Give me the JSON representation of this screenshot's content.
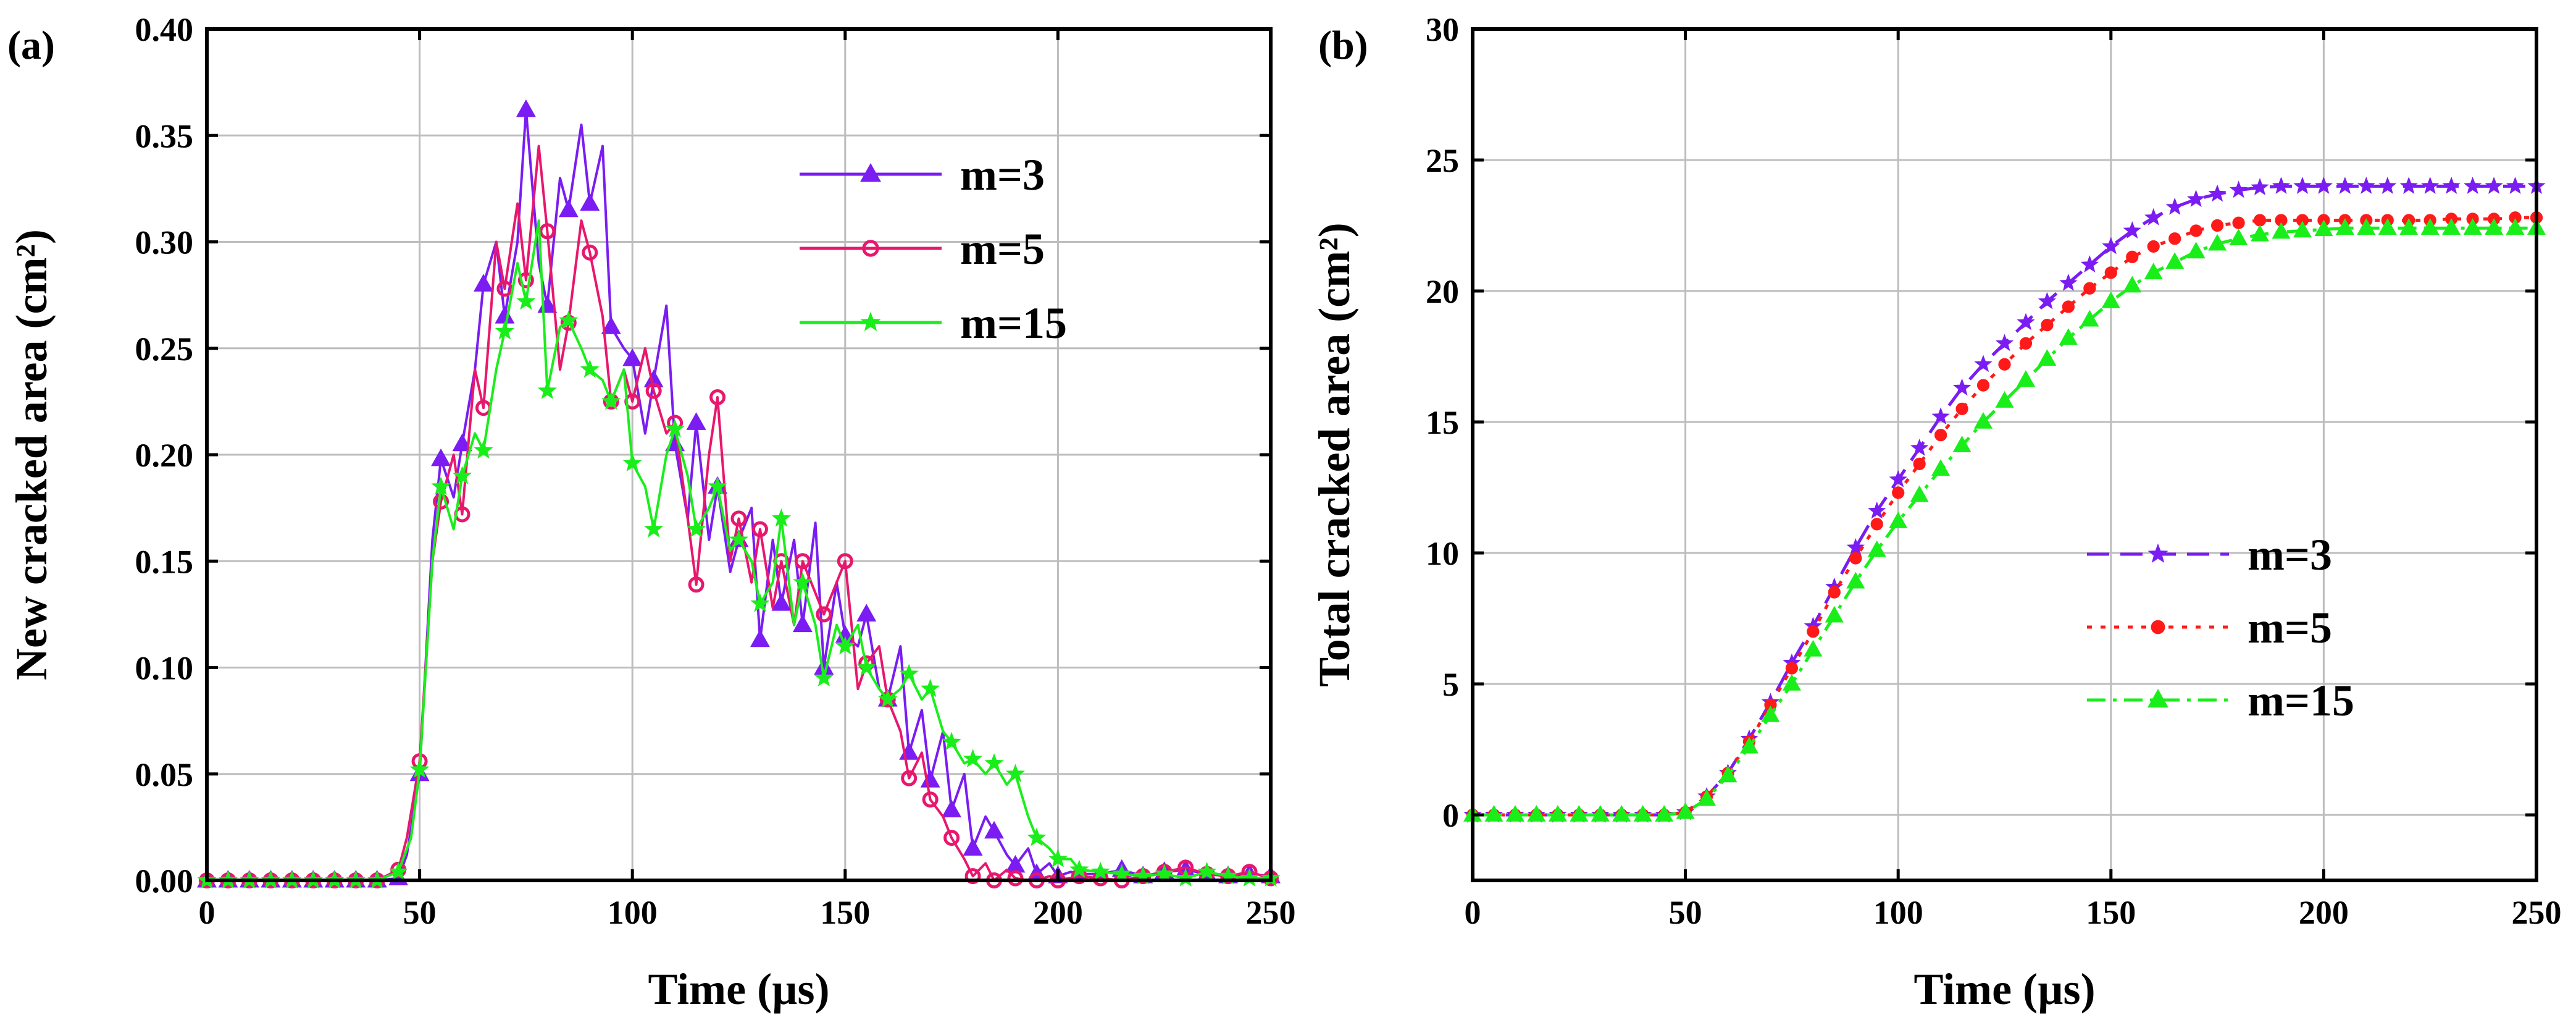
{
  "chart_data": [
    {
      "id": "a",
      "type": "line",
      "panel_label": "(a)",
      "xlabel": "Time (µs)",
      "ylabel": "New cracked area (cm²)",
      "xlim": [
        0,
        250
      ],
      "ylim": [
        0,
        0.4
      ],
      "xticks": [
        "0",
        "50",
        "100",
        "150",
        "200",
        "250"
      ],
      "yticks": [
        "0.00",
        "0.05",
        "0.10",
        "0.15",
        "0.20",
        "0.25",
        "0.30",
        "0.35",
        "0.40"
      ],
      "grid": true,
      "legend_position": "top-right",
      "series": [
        {
          "name": "m=3",
          "color": "#7a1cf2",
          "marker": "triangle",
          "dash": "solid",
          "x": [
            0,
            5,
            10,
            15,
            20,
            25,
            30,
            35,
            40,
            45,
            47,
            50,
            53,
            55,
            58,
            60,
            63,
            65,
            68,
            70,
            73,
            75,
            78,
            80,
            83,
            85,
            88,
            90,
            93,
            95,
            98,
            100,
            103,
            105,
            108,
            110,
            113,
            115,
            118,
            120,
            123,
            125,
            128,
            130,
            133,
            135,
            138,
            140,
            143,
            145,
            148,
            150,
            153,
            155,
            158,
            160,
            163,
            165,
            168,
            170,
            173,
            175,
            178,
            180,
            183,
            185,
            188,
            190,
            193,
            195,
            198,
            200,
            203,
            205,
            210,
            215,
            220,
            225,
            230,
            235,
            240,
            245,
            250
          ],
          "y": [
            0,
            0,
            0,
            0,
            0,
            0,
            0,
            0,
            0,
            0.001,
            0.012,
            0.05,
            0.16,
            0.198,
            0.18,
            0.205,
            0.24,
            0.28,
            0.3,
            0.265,
            0.3,
            0.362,
            0.29,
            0.27,
            0.33,
            0.315,
            0.355,
            0.318,
            0.345,
            0.26,
            0.25,
            0.245,
            0.21,
            0.235,
            0.27,
            0.205,
            0.17,
            0.215,
            0.16,
            0.185,
            0.145,
            0.16,
            0.175,
            0.113,
            0.16,
            0.13,
            0.16,
            0.12,
            0.168,
            0.1,
            0.14,
            0.115,
            0.11,
            0.125,
            0.09,
            0.085,
            0.11,
            0.06,
            0.08,
            0.047,
            0.07,
            0.033,
            0.05,
            0.015,
            0.03,
            0.023,
            0.012,
            0.007,
            0.015,
            0.003,
            0.008,
            0.002,
            0.004,
            0.003,
            0.003,
            0.005,
            0.002,
            0.004,
            0.005,
            0.003,
            0.002,
            0.003,
            0.002
          ]
        },
        {
          "name": "m=5",
          "color": "#e8176d",
          "marker": "circle",
          "dash": "solid",
          "x": [
            0,
            5,
            10,
            15,
            20,
            25,
            30,
            35,
            40,
            45,
            47,
            50,
            53,
            55,
            58,
            60,
            63,
            65,
            68,
            70,
            73,
            75,
            78,
            80,
            83,
            85,
            88,
            90,
            93,
            95,
            98,
            100,
            103,
            105,
            108,
            110,
            113,
            115,
            118,
            120,
            123,
            125,
            128,
            130,
            133,
            135,
            138,
            140,
            143,
            145,
            148,
            150,
            153,
            155,
            158,
            160,
            163,
            165,
            168,
            170,
            173,
            175,
            178,
            180,
            183,
            185,
            188,
            190,
            193,
            195,
            198,
            200,
            205,
            210,
            215,
            220,
            225,
            230,
            235,
            240,
            245,
            250
          ],
          "y": [
            0,
            0,
            0,
            0,
            0,
            0,
            0,
            0,
            0,
            0.005,
            0.02,
            0.056,
            0.15,
            0.178,
            0.2,
            0.172,
            0.24,
            0.222,
            0.3,
            0.278,
            0.318,
            0.282,
            0.345,
            0.305,
            0.24,
            0.262,
            0.31,
            0.295,
            0.265,
            0.225,
            0.24,
            0.225,
            0.25,
            0.23,
            0.21,
            0.215,
            0.17,
            0.139,
            0.2,
            0.227,
            0.15,
            0.17,
            0.14,
            0.165,
            0.128,
            0.15,
            0.12,
            0.15,
            0.135,
            0.125,
            0.14,
            0.15,
            0.09,
            0.102,
            0.11,
            0.085,
            0.07,
            0.048,
            0.06,
            0.038,
            0.03,
            0.02,
            0.01,
            0.002,
            0.008,
            0,
            0.005,
            0.001,
            0,
            0,
            0.002,
            0,
            0.002,
            0.001,
            0,
            0.002,
            0.004,
            0.006,
            0.003,
            0.002,
            0.004,
            0.001
          ]
        },
        {
          "name": "m=15",
          "color": "#1aee1a",
          "marker": "star",
          "dash": "solid",
          "x": [
            0,
            5,
            10,
            15,
            20,
            25,
            30,
            35,
            40,
            45,
            48,
            50,
            53,
            55,
            58,
            60,
            63,
            65,
            68,
            70,
            73,
            75,
            78,
            80,
            83,
            85,
            88,
            90,
            93,
            95,
            98,
            100,
            103,
            105,
            108,
            110,
            113,
            115,
            118,
            120,
            123,
            125,
            128,
            130,
            133,
            135,
            138,
            140,
            143,
            145,
            148,
            150,
            153,
            155,
            158,
            160,
            163,
            165,
            168,
            170,
            173,
            175,
            178,
            180,
            183,
            185,
            188,
            190,
            193,
            195,
            198,
            200,
            203,
            205,
            210,
            215,
            220,
            225,
            230,
            235,
            240,
            245,
            250
          ],
          "y": [
            0,
            0,
            0,
            0,
            0,
            0,
            0,
            0,
            0,
            0.004,
            0.02,
            0.052,
            0.15,
            0.185,
            0.165,
            0.19,
            0.21,
            0.202,
            0.24,
            0.258,
            0.29,
            0.272,
            0.31,
            0.23,
            0.26,
            0.263,
            0.25,
            0.24,
            0.235,
            0.225,
            0.24,
            0.196,
            0.185,
            0.165,
            0.2,
            0.212,
            0.19,
            0.165,
            0.175,
            0.185,
            0.155,
            0.16,
            0.15,
            0.13,
            0.14,
            0.17,
            0.12,
            0.14,
            0.12,
            0.095,
            0.12,
            0.11,
            0.12,
            0.1,
            0.09,
            0.085,
            0.09,
            0.097,
            0.085,
            0.09,
            0.07,
            0.065,
            0.055,
            0.057,
            0.05,
            0.055,
            0.045,
            0.05,
            0.03,
            0.02,
            0.015,
            0.01,
            0.01,
            0.005,
            0.004,
            0.003,
            0.002,
            0.003,
            0.001,
            0.004,
            0.002,
            0.001,
            0.001
          ]
        }
      ]
    },
    {
      "id": "b",
      "type": "line",
      "panel_label": "(b)",
      "xlabel": "Time (µs)",
      "ylabel": "Total cracked area (cm²)",
      "xlim": [
        0,
        250
      ],
      "ylim": [
        -2.5,
        30
      ],
      "xticks": [
        "0",
        "50",
        "100",
        "150",
        "200",
        "250"
      ],
      "yticks": [
        "0",
        "5",
        "10",
        "15",
        "20",
        "25",
        "30"
      ],
      "grid": true,
      "legend_position": "bottom-right",
      "series": [
        {
          "name": "m=3",
          "color": "#7a1cf2",
          "marker": "star",
          "dash": "dashed",
          "x": [
            0,
            5,
            10,
            15,
            20,
            25,
            30,
            35,
            40,
            45,
            50,
            55,
            60,
            65,
            70,
            75,
            80,
            85,
            90,
            95,
            100,
            105,
            110,
            115,
            120,
            125,
            130,
            135,
            140,
            145,
            150,
            155,
            160,
            165,
            170,
            175,
            180,
            185,
            190,
            195,
            200,
            205,
            210,
            215,
            220,
            225,
            230,
            235,
            240,
            245,
            250
          ],
          "y": [
            0,
            0,
            0,
            0,
            0,
            0,
            0,
            0,
            0,
            0,
            0.1,
            0.7,
            1.6,
            2.9,
            4.3,
            5.8,
            7.2,
            8.7,
            10.2,
            11.6,
            12.8,
            14.0,
            15.2,
            16.3,
            17.2,
            18.0,
            18.8,
            19.6,
            20.3,
            21.0,
            21.7,
            22.3,
            22.8,
            23.2,
            23.5,
            23.7,
            23.85,
            23.95,
            24.0,
            24.0,
            24.0,
            24.0,
            24.0,
            24.0,
            24.0,
            24.0,
            24.0,
            24.0,
            24.0,
            24.0,
            24.0
          ]
        },
        {
          "name": "m=5",
          "color": "#ff1a1a",
          "marker": "circle",
          "dash": "dotted",
          "x": [
            0,
            5,
            10,
            15,
            20,
            25,
            30,
            35,
            40,
            45,
            50,
            55,
            60,
            65,
            70,
            75,
            80,
            85,
            90,
            95,
            100,
            105,
            110,
            115,
            120,
            125,
            130,
            135,
            140,
            145,
            150,
            155,
            160,
            165,
            170,
            175,
            180,
            185,
            190,
            195,
            200,
            205,
            210,
            215,
            220,
            225,
            230,
            235,
            240,
            245,
            250
          ],
          "y": [
            0,
            0,
            0,
            0,
            0,
            0,
            0,
            0,
            0,
            0,
            0.1,
            0.7,
            1.6,
            2.8,
            4.2,
            5.6,
            7.0,
            8.5,
            9.8,
            11.1,
            12.3,
            13.4,
            14.5,
            15.5,
            16.4,
            17.2,
            18.0,
            18.7,
            19.4,
            20.1,
            20.7,
            21.3,
            21.7,
            22.0,
            22.3,
            22.5,
            22.6,
            22.7,
            22.7,
            22.7,
            22.7,
            22.7,
            22.7,
            22.7,
            22.7,
            22.7,
            22.75,
            22.75,
            22.75,
            22.8,
            22.8
          ]
        },
        {
          "name": "m=15",
          "color": "#1aee1a",
          "marker": "triangle",
          "dash": "dash-dot",
          "x": [
            0,
            5,
            10,
            15,
            20,
            25,
            30,
            35,
            40,
            45,
            50,
            55,
            60,
            65,
            70,
            75,
            80,
            85,
            90,
            95,
            100,
            105,
            110,
            115,
            120,
            125,
            130,
            135,
            140,
            145,
            150,
            155,
            160,
            165,
            170,
            175,
            180,
            185,
            190,
            195,
            200,
            205,
            210,
            215,
            220,
            225,
            230,
            235,
            240,
            245,
            250
          ],
          "y": [
            0,
            0,
            0,
            0,
            0,
            0,
            0,
            0,
            0,
            0,
            0.1,
            0.6,
            1.5,
            2.6,
            3.8,
            5.0,
            6.3,
            7.6,
            8.9,
            10.1,
            11.2,
            12.2,
            13.2,
            14.1,
            15.0,
            15.8,
            16.6,
            17.4,
            18.2,
            18.9,
            19.6,
            20.2,
            20.7,
            21.1,
            21.5,
            21.8,
            22.0,
            22.15,
            22.25,
            22.3,
            22.35,
            22.4,
            22.4,
            22.4,
            22.4,
            22.4,
            22.4,
            22.4,
            22.4,
            22.4,
            22.4
          ]
        }
      ]
    }
  ]
}
